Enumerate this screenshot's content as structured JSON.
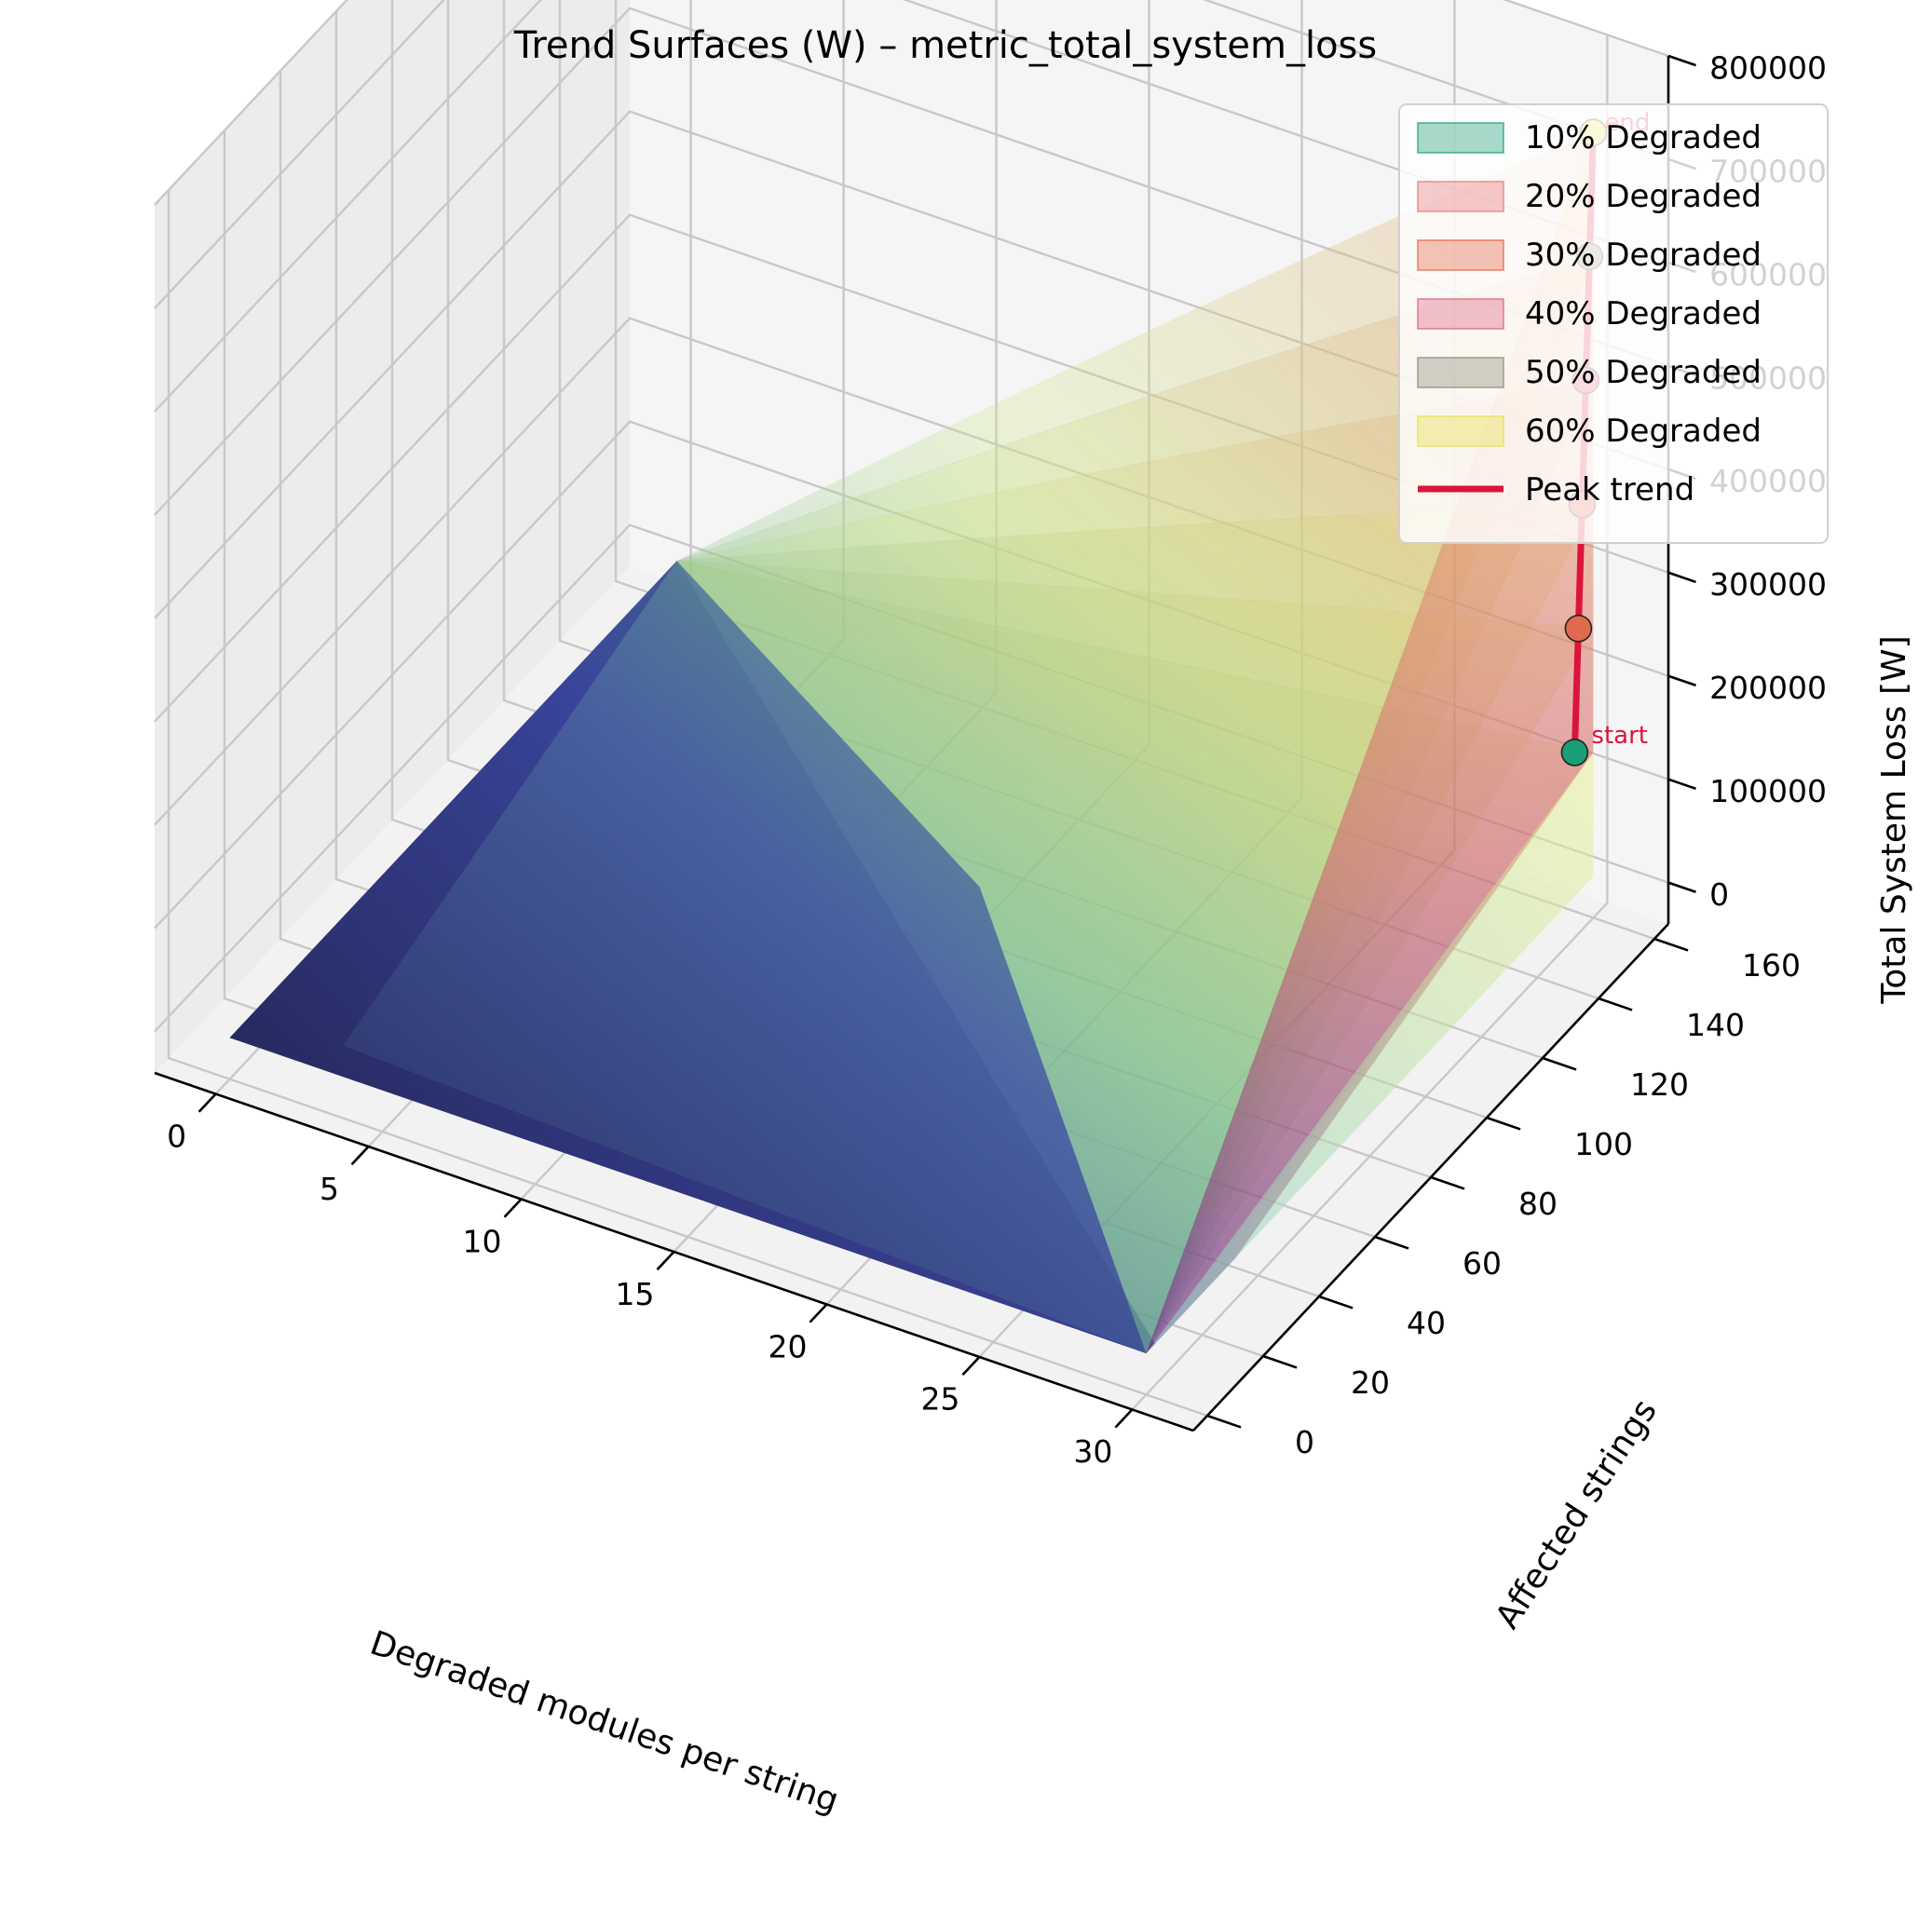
{
  "chart_data": {
    "type": "surface3d",
    "title": "Trend Surfaces (W) – metric_total_system_loss",
    "xlabel": "Degraded modules per string",
    "ylabel": "Affected strings",
    "zlabel": "Total System Loss [W]",
    "x_ticks": [
      "0",
      "5",
      "10",
      "15",
      "20",
      "25",
      "30"
    ],
    "y_ticks": [
      "0",
      "20",
      "40",
      "60",
      "80",
      "100",
      "120",
      "140",
      "160"
    ],
    "z_ticks": [
      "0",
      "100000",
      "200000",
      "300000",
      "400000",
      "500000",
      "600000",
      "700000",
      "800000"
    ],
    "xlim": [
      -2,
      32
    ],
    "ylim": [
      -5,
      165
    ],
    "zlim": [
      -40000,
      800000
    ],
    "grid": true,
    "legend_position": "top-right",
    "series": [
      {
        "name": "10% Degraded",
        "color": "#1b9e77",
        "peak": {
          "x": 30,
          "y": 160,
          "z": 120000
        }
      },
      {
        "name": "20% Degraded",
        "color": "#e8777a",
        "peak": {
          "x": 30,
          "y": 160,
          "z": 240000
        }
      },
      {
        "name": "30% Degraded",
        "color": "#e3664a",
        "peak": {
          "x": 30,
          "y": 160,
          "z": 360000
        }
      },
      {
        "name": "40% Degraded",
        "color": "#e0607e",
        "peak": {
          "x": 30,
          "y": 160,
          "z": 480000
        }
      },
      {
        "name": "50% Degraded",
        "color": "#8f8a75",
        "peak": {
          "x": 30,
          "y": 160,
          "z": 600000
        }
      },
      {
        "name": "60% Degraded",
        "color": "#e6e04a",
        "peak": {
          "x": 30,
          "y": 160,
          "z": 720000
        }
      }
    ],
    "peak_trend": {
      "name": "Peak trend",
      "color": "#dc143c",
      "start_label": "start",
      "end_label": "end",
      "markers": [
        {
          "z": 120000,
          "color": "#1b9e77"
        },
        {
          "z": 240000,
          "color": "#e06a4e"
        },
        {
          "z": 360000,
          "color": "#e2503a"
        },
        {
          "z": 480000,
          "color": "#e04466"
        },
        {
          "z": 600000,
          "color": "#8f8a75"
        },
        {
          "z": 720000,
          "color": "#e6d93a"
        }
      ]
    }
  }
}
